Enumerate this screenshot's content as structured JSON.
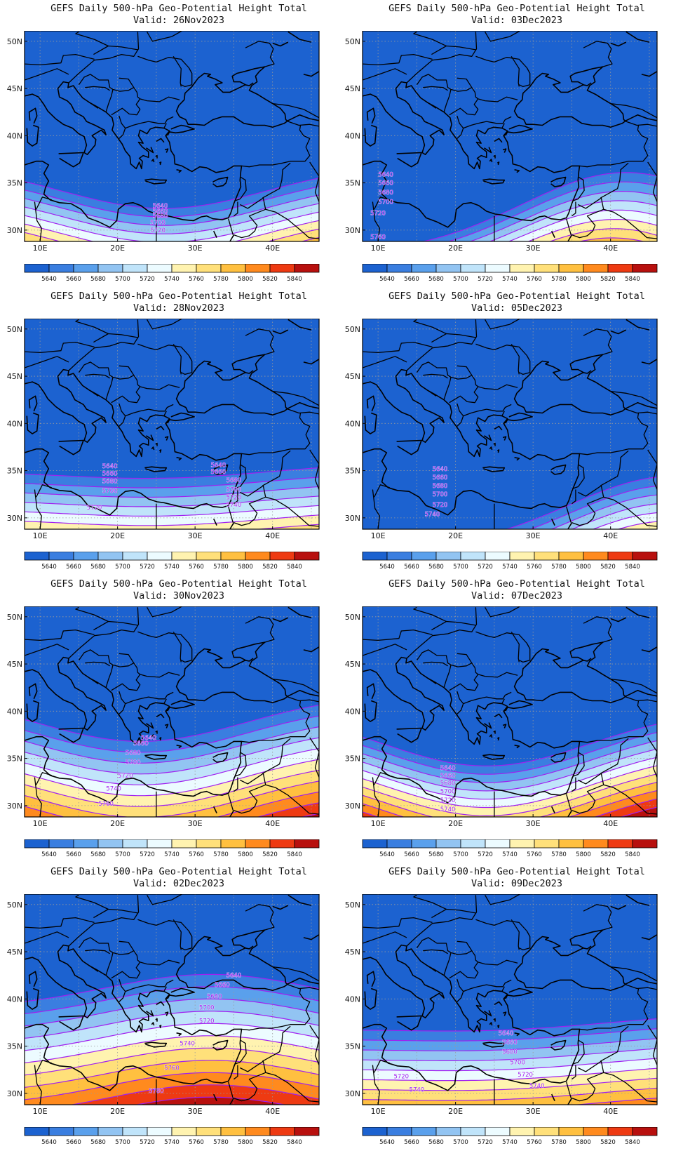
{
  "colorbar": {
    "levels": [
      "5640",
      "5660",
      "5680",
      "5700",
      "5720",
      "5740",
      "5760",
      "5780",
      "5800",
      "5820",
      "5840"
    ],
    "colors": [
      "#1c62d0",
      "#3a7ee0",
      "#5aa0ec",
      "#92c4f2",
      "#c0e4fa",
      "#ecfbff",
      "#fff3b0",
      "#ffe07a",
      "#ffc040",
      "#ff8a1e",
      "#ee3a12",
      "#b8100e"
    ]
  },
  "axes": {
    "lon_labels": [
      "10E",
      "20E",
      "30E",
      "40E"
    ],
    "lat_labels": [
      "50N",
      "45N",
      "40N",
      "35N",
      "30N"
    ]
  },
  "colors": {
    "contour": "#a020f0",
    "coast": "#000000",
    "grid": "#9a9a9a"
  },
  "panels": [
    {
      "title": "GEFS Daily 500-hPa Geo-Potential Height Total",
      "valid": "Valid: 26Nov2023",
      "field": {
        "type": "trough",
        "base_lat": 32.3,
        "center_lon": 26,
        "amp": 4.8,
        "tilt": 0,
        "spacing": 0.9,
        "tilt_spacing": 0
      },
      "contour_labels": [
        {
          "text": "5640",
          "lon": 25.5,
          "lat": 32.6
        },
        {
          "text": "5660",
          "lon": 25.5,
          "lat": 32.0
        },
        {
          "text": "5680",
          "lon": 25.5,
          "lat": 31.5
        },
        {
          "text": "5700",
          "lon": 25.2,
          "lat": 30.8
        },
        {
          "text": "5720",
          "lon": 25.2,
          "lat": 30.0
        }
      ]
    },
    {
      "title": "GEFS Daily 500-hPa Geo-Potential Height Total",
      "valid": "Valid: 03Dec2023",
      "field": {
        "type": "ridge",
        "base_lat": 36.1,
        "center_lon": 42,
        "amp": 8.6,
        "tilt": 0,
        "spacing": 1.0,
        "tilt_spacing": 0.012
      },
      "contour_labels": [
        {
          "text": "5640",
          "lon": 11.0,
          "lat": 35.9
        },
        {
          "text": "5660",
          "lon": 11.0,
          "lat": 35.0
        },
        {
          "text": "5680",
          "lon": 11.0,
          "lat": 34.0
        },
        {
          "text": "5700",
          "lon": 11.0,
          "lat": 33.0
        },
        {
          "text": "5720",
          "lon": 10.0,
          "lat": 31.8
        },
        {
          "text": "5760",
          "lon": 10.0,
          "lat": 29.3
        }
      ]
    },
    {
      "title": "GEFS Daily 500-hPa Geo-Potential Height Total",
      "valid": "Valid: 28Nov2023",
      "field": {
        "type": "trough",
        "base_lat": 34.2,
        "center_lon": 26,
        "amp": 1.2,
        "tilt": 0.015,
        "spacing": 1.0,
        "tilt_spacing": 0
      },
      "contour_labels": [
        {
          "text": "5640",
          "lon": 19.0,
          "lat": 35.5
        },
        {
          "text": "5660",
          "lon": 19.0,
          "lat": 34.7
        },
        {
          "text": "5680",
          "lon": 19.0,
          "lat": 33.9
        },
        {
          "text": "5700",
          "lon": 19.0,
          "lat": 32.9
        },
        {
          "text": "5720",
          "lon": 17.0,
          "lat": 31.1
        },
        {
          "text": "5640",
          "lon": 33.0,
          "lat": 35.6
        },
        {
          "text": "5660",
          "lon": 33.0,
          "lat": 34.9
        },
        {
          "text": "5680",
          "lon": 35.0,
          "lat": 34.0
        },
        {
          "text": "5700",
          "lon": 35.0,
          "lat": 33.0
        },
        {
          "text": "5720",
          "lon": 35.0,
          "lat": 32.2
        },
        {
          "text": "5740",
          "lon": 35.0,
          "lat": 31.4
        }
      ]
    },
    {
      "title": "GEFS Daily 500-hPa Geo-Potential Height Total",
      "valid": "Valid: 05Dec2023",
      "field": {
        "type": "ridge",
        "base_lat": 34.4,
        "center_lon": 48,
        "amp": 7.8,
        "tilt": 0,
        "spacing": 0.95,
        "tilt_spacing": 0.004
      },
      "contour_labels": [
        {
          "text": "5640",
          "lon": 18.0,
          "lat": 35.2
        },
        {
          "text": "5660",
          "lon": 18.0,
          "lat": 34.3
        },
        {
          "text": "5680",
          "lon": 18.0,
          "lat": 33.4
        },
        {
          "text": "5700",
          "lon": 18.0,
          "lat": 32.5
        },
        {
          "text": "5720",
          "lon": 18.0,
          "lat": 31.4
        },
        {
          "text": "5740",
          "lon": 17.0,
          "lat": 30.4
        }
      ]
    },
    {
      "title": "GEFS Daily 500-hPa Geo-Potential Height Total",
      "valid": "Valid: 30Nov2023",
      "field": {
        "type": "trough",
        "base_lat": 36.8,
        "center_lon": 23,
        "amp": 5.0,
        "tilt": 0,
        "spacing": 1.15,
        "tilt_spacing": 0
      },
      "contour_labels": [
        {
          "text": "5640",
          "lon": 24.0,
          "lat": 37.2
        },
        {
          "text": "5660",
          "lon": 23.0,
          "lat": 36.6
        },
        {
          "text": "5680",
          "lon": 22.0,
          "lat": 35.6
        },
        {
          "text": "5700",
          "lon": 22.0,
          "lat": 34.6
        },
        {
          "text": "5720",
          "lon": 21.0,
          "lat": 33.2
        },
        {
          "text": "5740",
          "lon": 19.5,
          "lat": 31.8
        },
        {
          "text": "5760",
          "lon": 18.5,
          "lat": 30.2
        }
      ]
    },
    {
      "title": "GEFS Daily 500-hPa Geo-Potential Height Total",
      "valid": "Valid: 07Dec2023",
      "field": {
        "type": "trough",
        "base_lat": 34.2,
        "center_lon": 24,
        "amp": 6.0,
        "tilt": 0,
        "spacing": 0.88,
        "tilt_spacing": 0
      },
      "contour_labels": [
        {
          "text": "5640",
          "lon": 19.0,
          "lat": 34.0
        },
        {
          "text": "5660",
          "lon": 19.0,
          "lat": 33.2
        },
        {
          "text": "5680",
          "lon": 19.0,
          "lat": 32.4
        },
        {
          "text": "5700",
          "lon": 19.0,
          "lat": 31.5
        },
        {
          "text": "5720",
          "lon": 19.0,
          "lat": 30.6
        },
        {
          "text": "5740",
          "lon": 19.0,
          "lat": 29.6
        }
      ]
    },
    {
      "title": "GEFS Daily 500-hPa Geo-Potential Height Total",
      "valid": "Valid: 02Dec2023",
      "field": {
        "type": "ridge",
        "base_lat": 42.6,
        "center_lon": 32,
        "amp": 3.6,
        "tilt": 0,
        "spacing": 1.3,
        "tilt_spacing": 0
      },
      "contour_labels": [
        {
          "text": "5640",
          "lon": 35.0,
          "lat": 42.5
        },
        {
          "text": "5660",
          "lon": 33.5,
          "lat": 41.5
        },
        {
          "text": "5680",
          "lon": 32.5,
          "lat": 40.3
        },
        {
          "text": "5700",
          "lon": 31.5,
          "lat": 39.1
        },
        {
          "text": "5720",
          "lon": 31.5,
          "lat": 37.7
        },
        {
          "text": "5740",
          "lon": 29.0,
          "lat": 35.3
        },
        {
          "text": "5760",
          "lon": 27.0,
          "lat": 32.7
        },
        {
          "text": "5780",
          "lon": 25.0,
          "lat": 30.3
        }
      ]
    },
    {
      "title": "GEFS Daily 500-hPa Geo-Potential Height Total",
      "valid": "Valid: 09Dec2023",
      "field": {
        "type": "flat",
        "base_lat": 36.7,
        "center_lon": 26,
        "amp": 0.9,
        "tilt": 0.03,
        "spacing": 1.05,
        "tilt_spacing": 0
      },
      "contour_labels": [
        {
          "text": "5640",
          "lon": 26.5,
          "lat": 36.4
        },
        {
          "text": "5660",
          "lon": 27.0,
          "lat": 35.4
        },
        {
          "text": "5680",
          "lon": 27.0,
          "lat": 34.4
        },
        {
          "text": "5700",
          "lon": 28.0,
          "lat": 33.3
        },
        {
          "text": "5720",
          "lon": 13.0,
          "lat": 31.8
        },
        {
          "text": "5740",
          "lon": 15.0,
          "lat": 30.4
        },
        {
          "text": "5720",
          "lon": 29.0,
          "lat": 32.0
        },
        {
          "text": "5740",
          "lon": 30.5,
          "lat": 30.8
        }
      ]
    }
  ]
}
